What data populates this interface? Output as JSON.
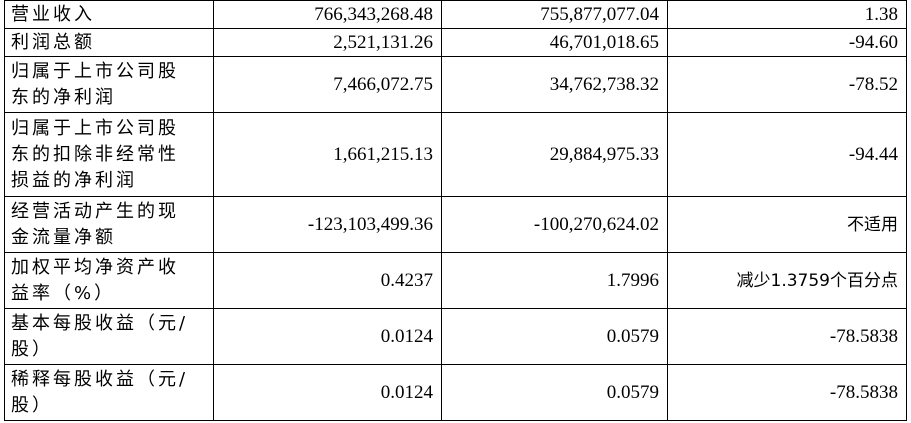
{
  "table": {
    "rows": [
      {
        "label_lines": [
          "营业收入"
        ],
        "current": "766,343,268.48",
        "previous": "755,877,077.04",
        "change": "1.38"
      },
      {
        "label_lines": [
          "利润总额"
        ],
        "current": "2,521,131.26",
        "previous": "46,701,018.65",
        "change": "-94.60"
      },
      {
        "label_lines": [
          "归属于上市公司股",
          "东的净利润"
        ],
        "current": "7,466,072.75",
        "previous": "34,762,738.32",
        "change": "-78.52"
      },
      {
        "label_lines": [
          "归属于上市公司股",
          "东的扣除非经常性",
          "损益的净利润"
        ],
        "current": "1,661,215.13",
        "previous": "29,884,975.33",
        "change": "-94.44"
      },
      {
        "label_lines": [
          "经营活动产生的现",
          "金流量净额"
        ],
        "current": "-123,103,499.36",
        "previous": "-100,270,624.02",
        "change": "不适用"
      },
      {
        "label_lines": [
          "加权平均净资产收",
          "益率（%）"
        ],
        "current": "0.4237",
        "previous": "1.7996",
        "change": "减少1.3759个百分点"
      },
      {
        "label_lines": [
          "基本每股收益（元/",
          "股）"
        ],
        "current": "0.0124",
        "previous": "0.0579",
        "change": "-78.5838"
      },
      {
        "label_lines": [
          "稀释每股收益（元/",
          "股）"
        ],
        "current": "0.0124",
        "previous": "0.0579",
        "change": "-78.5838"
      }
    ]
  }
}
